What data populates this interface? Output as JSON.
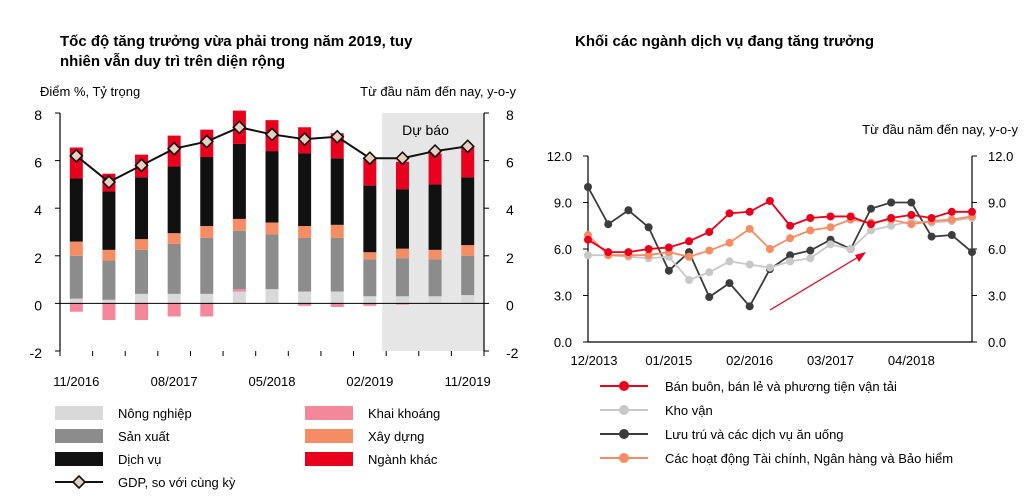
{
  "left": {
    "title_line1": "Tốc độ tăng trưởng vừa phải trong năm 2019, tuy",
    "title_line2": "nhiên vẫn duy trì trên diện rộng",
    "left_axis_label": "Điểm %, Tỷ trọng",
    "right_axis_label": "Từ đầu năm đến nay, y-o-y",
    "forecast_label": "Dự báo",
    "y_ticks": [
      "8",
      "6",
      "4",
      "2",
      "0",
      "-2"
    ],
    "x_ticks": [
      "11/2016",
      "08/2017",
      "05/2018",
      "02/2019",
      "11/2019"
    ],
    "legend": [
      {
        "key": "agri",
        "label": "Nông nghiệp"
      },
      {
        "key": "mining",
        "label": "Khai khoáng"
      },
      {
        "key": "manu",
        "label": "Sản xuất"
      },
      {
        "key": "constr",
        "label": "Xây dựng"
      },
      {
        "key": "serv",
        "label": "Dịch vụ"
      },
      {
        "key": "other",
        "label": "Ngành khác"
      },
      {
        "key": "gdp",
        "label": "GDP, so với cùng kỳ"
      }
    ]
  },
  "right": {
    "title": "Khối các ngành dịch vụ đang tăng trưởng",
    "axis_label": "Từ đầu năm đến nay, y-o-y",
    "y_ticks": [
      "12.0",
      "9.0",
      "6.0",
      "3.0",
      "0.0"
    ],
    "x_ticks": [
      "12/2013",
      "01/2015",
      "02/2016",
      "03/2017",
      "04/2018"
    ]
  },
  "colors": {
    "agri": "#d9d9d9",
    "mining": "#f4879a",
    "manu": "#8c8c8c",
    "constr": "#f58c64",
    "serv": "#111111",
    "other": "#e8001c",
    "gdp_marker": "#e8cfc0",
    "forecast_bg": "#e6e6e6",
    "trade": "#e8001c",
    "warehouse": "#c8c8c8",
    "hospitality": "#3c3c3c",
    "finance": "#f58c64"
  },
  "chart_data": [
    {
      "type": "bar",
      "stacked": true,
      "categories": [
        "11/2016",
        "02/2017",
        "05/2017",
        "08/2017",
        "11/2017",
        "02/2018",
        "05/2018",
        "08/2018",
        "11/2018",
        "02/2019",
        "05/2019",
        "08/2019",
        "11/2019"
      ],
      "x_ticks_shown": [
        "11/2016",
        "08/2017",
        "05/2018",
        "02/2019",
        "11/2019"
      ],
      "ylim": [
        -2,
        8
      ],
      "forecast_from": "05/2019",
      "series": [
        {
          "key": "agri",
          "name": "Nông nghiệp",
          "values": [
            0.2,
            0.15,
            0.4,
            0.4,
            0.4,
            0.5,
            0.6,
            0.5,
            0.5,
            0.3,
            0.3,
            0.3,
            0.35
          ]
        },
        {
          "key": "mining",
          "name": "Khai khoáng",
          "values": [
            -0.35,
            -0.7,
            -0.7,
            -0.55,
            -0.55,
            0.1,
            0.0,
            -0.1,
            -0.15,
            -0.1,
            -0.05,
            0.0,
            0.0
          ]
        },
        {
          "key": "manu",
          "name": "Sản xuất",
          "values": [
            1.8,
            1.65,
            1.85,
            2.1,
            2.35,
            2.45,
            2.3,
            2.25,
            2.25,
            1.55,
            1.6,
            1.55,
            1.65
          ]
        },
        {
          "key": "constr",
          "name": "Xây dựng",
          "values": [
            0.6,
            0.45,
            0.45,
            0.45,
            0.5,
            0.5,
            0.5,
            0.5,
            0.55,
            0.3,
            0.4,
            0.4,
            0.45
          ]
        },
        {
          "key": "serv",
          "name": "Dịch vụ",
          "values": [
            2.65,
            2.45,
            2.6,
            2.8,
            2.9,
            3.15,
            3.0,
            3.05,
            2.8,
            2.8,
            2.5,
            2.75,
            2.85
          ]
        },
        {
          "key": "other",
          "name": "Ngành khác",
          "values": [
            1.3,
            0.75,
            0.95,
            1.3,
            1.15,
            1.4,
            1.3,
            1.1,
            1.05,
            1.2,
            1.15,
            1.3,
            1.3
          ]
        }
      ],
      "line": {
        "key": "gdp",
        "name": "GDP, so với cùng kỳ",
        "values": [
          6.2,
          5.1,
          5.8,
          6.5,
          6.8,
          7.4,
          7.1,
          6.9,
          7.0,
          6.1,
          6.1,
          6.4,
          6.6
        ]
      }
    },
    {
      "type": "line",
      "x_ticks_shown": [
        "12/2013",
        "01/2015",
        "02/2016",
        "03/2017",
        "04/2018"
      ],
      "ylim": [
        0,
        12
      ],
      "x": [
        0,
        1,
        2,
        3,
        4,
        5,
        6,
        7,
        8,
        9,
        10,
        11,
        12,
        13,
        14,
        15,
        16,
        17,
        18,
        19
      ],
      "series": [
        {
          "key": "trade",
          "name": "Bán buôn, bán lẻ và phương tiện vận tải",
          "values": [
            6.6,
            5.8,
            5.8,
            6.0,
            6.1,
            6.5,
            7.1,
            8.3,
            8.4,
            9.1,
            7.5,
            8.0,
            8.1,
            8.1,
            7.6,
            8.0,
            8.2,
            8.0,
            8.4,
            8.4
          ]
        },
        {
          "key": "warehouse",
          "name": "Kho vận",
          "values": [
            5.6,
            5.6,
            5.5,
            5.4,
            5.5,
            4.0,
            4.5,
            5.2,
            5.0,
            4.8,
            5.2,
            5.4,
            6.3,
            6.0,
            7.2,
            7.5,
            7.8,
            7.7,
            7.8,
            8.0
          ]
        },
        {
          "key": "hospitality",
          "name": "Lưu trú và các dịch vụ ăn uống",
          "values": [
            10.0,
            7.6,
            8.5,
            7.4,
            4.6,
            5.8,
            2.9,
            3.8,
            2.3,
            4.7,
            5.6,
            5.9,
            6.6,
            6.0,
            8.6,
            9.0,
            9.0,
            6.8,
            6.9,
            5.8
          ]
        },
        {
          "key": "finance",
          "name": "Các hoạt động Tài chính, Ngân hàng và Bảo hiểm",
          "values": [
            6.9,
            5.6,
            5.6,
            5.6,
            5.8,
            5.5,
            5.9,
            6.4,
            7.3,
            6.0,
            6.7,
            7.2,
            7.4,
            7.9,
            7.7,
            7.9,
            7.6,
            7.8,
            7.9,
            8.1
          ]
        }
      ]
    }
  ]
}
